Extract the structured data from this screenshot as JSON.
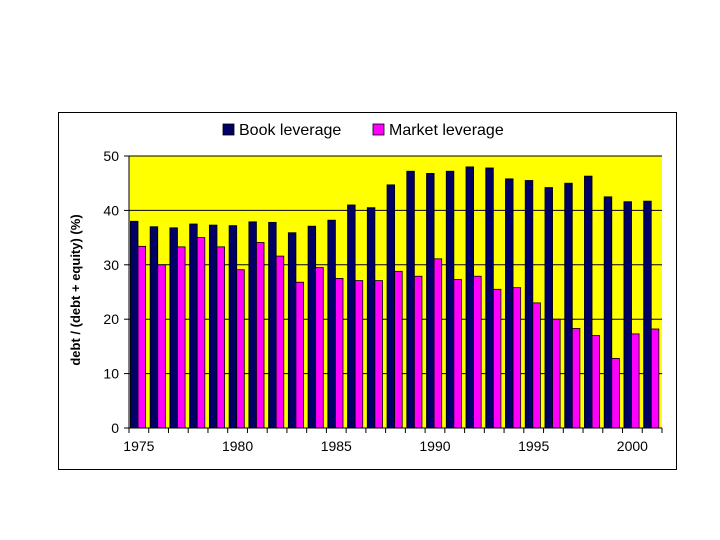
{
  "chart_data": {
    "type": "bar",
    "title": "",
    "xlabel": "",
    "ylabel": "debt / (debt + equity) (%)",
    "ylim": [
      0,
      50
    ],
    "yticks": [
      0,
      10,
      20,
      30,
      40,
      50
    ],
    "xtick_labels": [
      "1975",
      "1980",
      "1985",
      "1990",
      "1995",
      "2000"
    ],
    "xtick_years": [
      1975,
      1980,
      1985,
      1990,
      1995,
      2000
    ],
    "plot_background": "#ffff00",
    "gridlines": true,
    "legend_position": "top-center",
    "categories": [
      1975,
      1976,
      1977,
      1978,
      1979,
      1980,
      1981,
      1982,
      1983,
      1984,
      1985,
      1986,
      1987,
      1988,
      1989,
      1990,
      1991,
      1992,
      1993,
      1994,
      1995,
      1996,
      1997,
      1998,
      1999,
      2000,
      2001
    ],
    "series": [
      {
        "name": "Book leverage",
        "color": "#000066",
        "values": [
          38,
          37,
          36.8,
          37.5,
          37.3,
          37.2,
          37.9,
          37.8,
          35.9,
          37.1,
          38.2,
          41,
          40.5,
          44.7,
          47.2,
          46.8,
          47.2,
          48,
          47.8,
          45.8,
          45.5,
          44.2,
          45,
          46.3,
          42.5,
          41.6,
          41.7
        ]
      },
      {
        "name": "Market leverage",
        "color": "#ff00ff",
        "values": [
          33.4,
          30,
          33.3,
          35,
          33.3,
          29.1,
          34.1,
          31.6,
          26.8,
          29.5,
          27.5,
          27.1,
          27.1,
          28.8,
          27.9,
          31.1,
          27.3,
          27.9,
          25.5,
          25.8,
          23,
          20,
          18.3,
          17,
          12.8,
          17.3,
          18.2
        ]
      }
    ]
  }
}
